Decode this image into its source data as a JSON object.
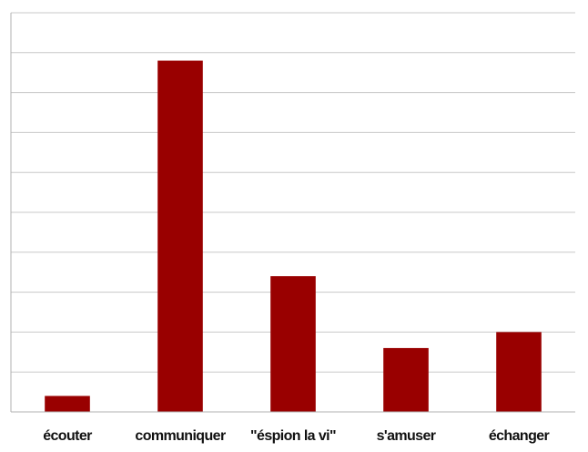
{
  "chart_data": {
    "type": "bar",
    "categories": [
      "écouter",
      "communiquer",
      "\"éspion la vi\"",
      "s'amuser",
      "échanger"
    ],
    "values": [
      0.4,
      8.8,
      3.4,
      1.6,
      2.0
    ],
    "ylim": [
      0,
      10
    ],
    "ytick_step": 1,
    "grid": true,
    "bar_color": "#990000",
    "grid_color": "#c8c8c8",
    "axis_color": "#b0b0b0"
  }
}
